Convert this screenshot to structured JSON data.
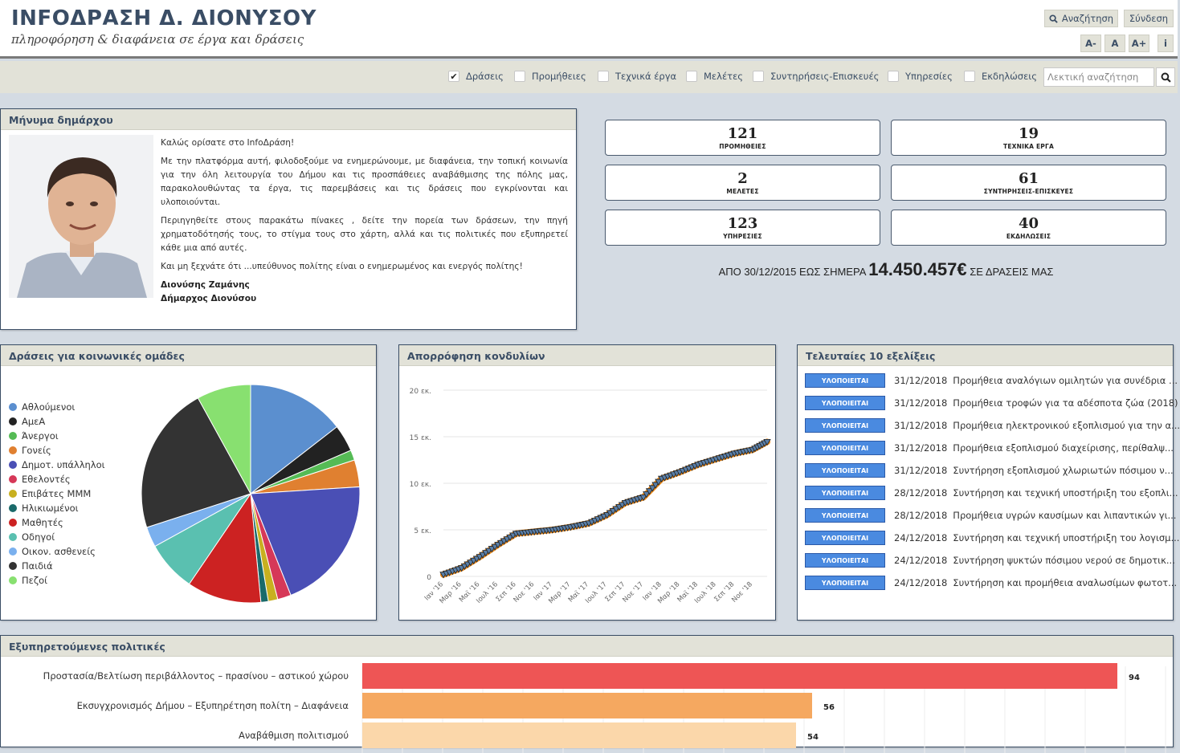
{
  "header": {
    "title": "INFOΔΡΑΣΗ Δ. ΔΙΟΝΥΣΟΥ",
    "subtitle": "πληροφόρηση & διαφάνεια σε έργα και δράσεις",
    "search_label": "Αναζήτηση",
    "login_label": "Σύνδεση",
    "font_decrease": "A-",
    "font_normal": "A",
    "font_increase": "A+",
    "info_label": "i"
  },
  "filters": {
    "items": [
      {
        "label": "Δράσεις",
        "checked": true
      },
      {
        "label": "Προμήθειες",
        "checked": false
      },
      {
        "label": "Τεχνικά έργα",
        "checked": false
      },
      {
        "label": "Μελέτες",
        "checked": false
      },
      {
        "label": "Συντηρήσεις-Επισκευές",
        "checked": false
      },
      {
        "label": "Υπηρεσίες",
        "checked": false
      },
      {
        "label": "Εκδηλώσεις",
        "checked": false
      }
    ],
    "text_search_placeholder": "Λεκτική αναζήτηση"
  },
  "mayor": {
    "heading": "Μήνυμα δημάρχου",
    "p1": "Καλώς ορίσατε στο InfoΔράση!",
    "p2": "Με την πλατφόρμα αυτή, φιλοδοξούμε να ενημερώνουμε, με διαφάνεια, την τοπική κοινωνία για την όλη λειτουργία του Δήμου και τις προσπάθειες αναβάθμισης της πόλης μας, παρακολουθώντας τα έργα, τις παρεμβάσεις και τις δράσεις που εγκρίνονται και υλοποιούνται.",
    "p3": "Περιηγηθείτε στους παρακάτω πίνακες , δείτε την πορεία των δράσεων, την πηγή χρηματοδότησής τους, το στίγμα τους στο χάρτη, αλλά και τις πολιτικές που εξυπηρετεί κάθε μια από αυτές.",
    "p4": "Και μη ξεχνάτε ότι ...υπεύθυνος πολίτης είναι ο ενημερωμένος και ενεργός πολίτης!",
    "name": "Διονύσης Ζαμάνης",
    "role": "Δήμαρχος Διονύσου"
  },
  "stats": [
    {
      "value": "121",
      "label": "ΠΡΟΜΗΘΕΙΕΣ"
    },
    {
      "value": "19",
      "label": "ΤΕΧΝΙΚΑ ΕΡΓΑ"
    },
    {
      "value": "2",
      "label": "ΜΕΛΕΤΕΣ"
    },
    {
      "value": "61",
      "label": "ΣΥΝΤΗΡΗΣΕΙΣ-ΕΠΙΣΚΕΥΕΣ"
    },
    {
      "value": "123",
      "label": "ΥΠΗΡΕΣΙΕΣ"
    },
    {
      "value": "40",
      "label": "ΕΚΔΗΛΩΣΕΙΣ"
    }
  ],
  "totals": {
    "prefix": "ΑΠΟ 30/12/2015 ΕΩΣ ΣΗΜΕΡΑ",
    "amount": "14.450.457€",
    "suffix": "ΣΕ ΔΡΑΣΕΙΣ ΜΑΣ"
  },
  "panels": {
    "pie_title": "Δράσεις για κοινωνικές ομάδες",
    "line_title": "Απορρόφηση κονδυλίων",
    "updates_title": "Τελευταίες 10 εξελίξεις",
    "policies_title": "Εξυπηρετούμενες πολιτικές"
  },
  "chart_data": [
    {
      "type": "pie",
      "title": "Δράσεις για κοινωνικές ομάδες",
      "legend_position": "left",
      "slices": [
        {
          "label": "Αθλούμενοι",
          "value": 14.5,
          "color": "#5b8fcf"
        },
        {
          "label": "ΑμεΑ",
          "value": 4.0,
          "color": "#222222"
        },
        {
          "label": "Άνεργοι",
          "value": 1.5,
          "color": "#55bb55"
        },
        {
          "label": "Γονείς",
          "value": 4.0,
          "color": "#e08030"
        },
        {
          "label": "Δημοτ. υπάλληλοι",
          "value": 20.0,
          "color": "#4a4fb5"
        },
        {
          "label": "Εθελοντές",
          "value": 2.0,
          "color": "#d63858"
        },
        {
          "label": "Επιβάτες ΜΜΜ",
          "value": 1.4,
          "color": "#c8b020"
        },
        {
          "label": "Ηλικιωμένοι",
          "value": 1.1,
          "color": "#1a6a6a"
        },
        {
          "label": "Μαθητές",
          "value": 11.0,
          "color": "#cc2222"
        },
        {
          "label": "Οδηγοί",
          "value": 7.5,
          "color": "#5ac0b0"
        },
        {
          "label": "Οικον. ασθενείς",
          "value": 3.0,
          "color": "#7ab0ee"
        },
        {
          "label": "Παιδιά",
          "value": 22.0,
          "color": "#333333"
        },
        {
          "label": "Πεζοί",
          "value": 8.0,
          "color": "#88e070"
        }
      ]
    },
    {
      "type": "line",
      "title": "Απορρόφηση κονδυλίων",
      "ylim": [
        0,
        20
      ],
      "y_ticks": [
        "0",
        "5 εκ.",
        "10 εκ.",
        "15 εκ.",
        "20 εκ."
      ],
      "x_ticks": [
        "Ιαν '16",
        "Μαρ '16",
        "Μαϊ '16",
        "Ιουλ '16",
        "Σεπ '16",
        "Νοε '16",
        "Ιαν '17",
        "Μαρ '17",
        "Μαϊ '17",
        "Ιουλ '17",
        "Σεπ '17",
        "Νοε '17",
        "Ιαν '18",
        "Μαρ '18",
        "Μαϊ '18",
        "Ιουλ '18",
        "Σεπ '18",
        "Νοε '18"
      ],
      "x": [
        0,
        1,
        2,
        3,
        4,
        5,
        6,
        7,
        8,
        9,
        10,
        11,
        12,
        13,
        14,
        15,
        16,
        17,
        17.8
      ],
      "values": [
        0.2,
        0.9,
        2.1,
        3.4,
        4.6,
        4.8,
        5.0,
        5.3,
        5.7,
        6.6,
        7.9,
        8.5,
        10.5,
        11.2,
        12.0,
        12.6,
        13.2,
        13.6,
        14.45
      ],
      "series_color": "#f08c1a"
    },
    {
      "type": "bar",
      "title": "Εξυπηρετούμενες πολιτικές",
      "categories": [
        "Προστασία/Βελτίωση περιβάλλοντος – πρασίνου – αστικού χώρου",
        "Εκσυγχρονισμός Δήμου – Εξυπηρέτηση πολίτη – Διαφάνεια",
        "Αναβάθμιση πολιτισμού"
      ],
      "values": [
        94,
        56,
        54
      ],
      "colors": [
        "#ee5555",
        "#f5a860",
        "#fbd7aa"
      ],
      "xlim": [
        0,
        100
      ]
    }
  ],
  "updates": {
    "badge_label": "ΥΛΟΠΟΙΕΙΤΑΙ",
    "items": [
      {
        "date": "31/12/2018",
        "title": "Προμήθεια αναλόγιων ομιλητών για συνέδρια ..."
      },
      {
        "date": "31/12/2018",
        "title": "Προμήθεια τροφών για τα αδέσποτα ζώα (2018)"
      },
      {
        "date": "31/12/2018",
        "title": "Προμήθεια ηλεκτρονικού εξοπλισμού για την α..."
      },
      {
        "date": "31/12/2018",
        "title": "Προμήθεια εξοπλισμού διαχείρισης, περίθαλψ..."
      },
      {
        "date": "31/12/2018",
        "title": "Συντήρηση εξοπλισμού χλωριωτών πόσιμου ν..."
      },
      {
        "date": "28/12/2018",
        "title": "Συντήρηση και τεχνική υποστήριξη του εξοπλι..."
      },
      {
        "date": "28/12/2018",
        "title": "Προμήθεια υγρών καυσίμων και λιπαντικών γι..."
      },
      {
        "date": "24/12/2018",
        "title": "Συντήρηση και τεχνική υποστήριξη του λογισμ..."
      },
      {
        "date": "24/12/2018",
        "title": "Συντήρηση ψυκτών πόσιμου νερού σε δημοτικ..."
      },
      {
        "date": "24/12/2018",
        "title": "Συντήρηση και προμήθεια αναλωσίμων φωτοτ..."
      }
    ]
  }
}
